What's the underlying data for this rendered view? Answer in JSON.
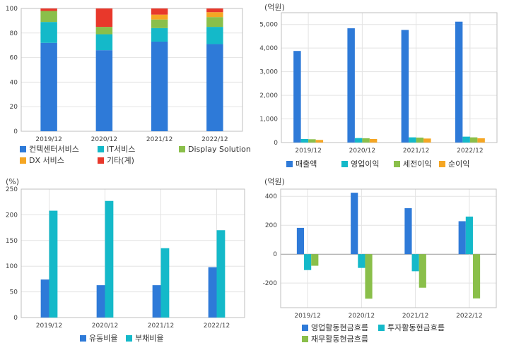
{
  "colors": {
    "blue": "#2e7ad8",
    "cyan": "#14b9c9",
    "green": "#8abf4a",
    "orange": "#f5a623",
    "red": "#e8382b",
    "grid": "#e3e3e3",
    "frame": "#bfbfbf",
    "text": "#444444"
  },
  "chart_data": [
    {
      "id": "revenue-mix",
      "type": "bar",
      "stacked": true,
      "categories": [
        "2019/12",
        "2020/12",
        "2021/12",
        "2022/12"
      ],
      "series": [
        {
          "name": "컨텍센터서비스",
          "color": "blue",
          "values": [
            72,
            66,
            73,
            71
          ]
        },
        {
          "name": "IT서비스",
          "color": "cyan",
          "values": [
            17,
            13,
            11,
            14
          ]
        },
        {
          "name": "Display Solution",
          "color": "green",
          "values": [
            9,
            6,
            7,
            8
          ]
        },
        {
          "name": "DX 서비스",
          "color": "orange",
          "values": [
            0,
            0,
            4,
            4
          ]
        },
        {
          "name": "기타(계)",
          "color": "red",
          "values": [
            2,
            15,
            5,
            3
          ]
        }
      ],
      "ylim": [
        0,
        100
      ],
      "yticks": [
        0,
        20,
        40,
        60,
        80,
        100
      ],
      "unit": "",
      "grid": true,
      "legend": "bottom"
    },
    {
      "id": "income",
      "type": "bar",
      "stacked": false,
      "categories": [
        "2019/12",
        "2020/12",
        "2021/12",
        "2022/12"
      ],
      "series": [
        {
          "name": "매출액",
          "color": "blue",
          "values": [
            3880,
            4840,
            4770,
            5120
          ]
        },
        {
          "name": "영업이익",
          "color": "cyan",
          "values": [
            150,
            190,
            220,
            250
          ]
        },
        {
          "name": "세전이익",
          "color": "green",
          "values": [
            140,
            180,
            210,
            220
          ]
        },
        {
          "name": "순이익",
          "color": "orange",
          "values": [
            110,
            150,
            170,
            180
          ]
        }
      ],
      "ylim": [
        0,
        5500
      ],
      "yticks": [
        0,
        1000,
        2000,
        3000,
        4000,
        5000
      ],
      "yticklabels": [
        "0",
        "1,000",
        "2,000",
        "3,000",
        "4,000",
        "5,000"
      ],
      "unit": "(억원)",
      "grid": true,
      "legend": "bottom"
    },
    {
      "id": "stability",
      "type": "bar",
      "stacked": false,
      "categories": [
        "2019/12",
        "2020/12",
        "2021/12",
        "2022/12"
      ],
      "series": [
        {
          "name": "유동비율",
          "color": "blue",
          "values": [
            74,
            63,
            63,
            98
          ]
        },
        {
          "name": "부채비율",
          "color": "cyan",
          "values": [
            208,
            227,
            135,
            170
          ]
        }
      ],
      "ylim": [
        0,
        250
      ],
      "yticks": [
        0,
        50,
        100,
        150,
        200,
        250
      ],
      "unit": "(%)",
      "grid": true,
      "legend": "bottom"
    },
    {
      "id": "cashflow",
      "type": "bar",
      "stacked": false,
      "categories": [
        "2019/12",
        "2020/12",
        "2021/12",
        "2022/12"
      ],
      "series": [
        {
          "name": "영업활동현금흐름",
          "color": "blue",
          "values": [
            182,
            425,
            318,
            228
          ]
        },
        {
          "name": "투자활동현금흐름",
          "color": "cyan",
          "values": [
            -110,
            -95,
            -118,
            260
          ]
        },
        {
          "name": "재무활동현금흐름",
          "color": "green",
          "values": [
            -80,
            -308,
            -232,
            -306
          ]
        }
      ],
      "ylim": [
        -370,
        450
      ],
      "yticks": [
        -200,
        0,
        200,
        400
      ],
      "unit": "(억원)",
      "grid": true,
      "legend": "bottom"
    }
  ]
}
